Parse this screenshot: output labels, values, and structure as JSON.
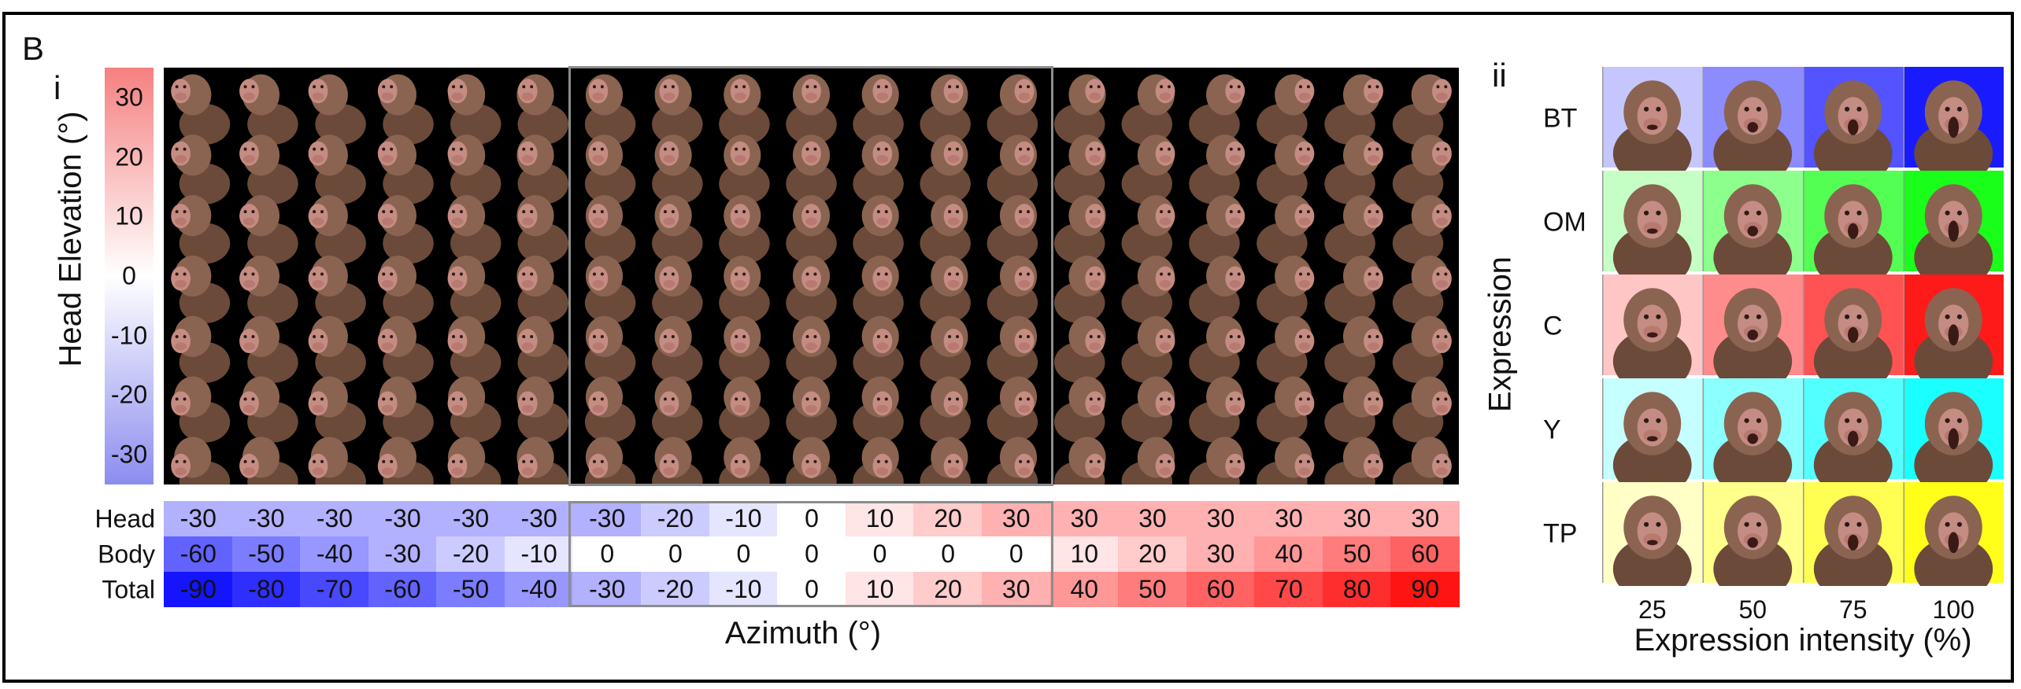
{
  "panel_letter": "B",
  "left": {
    "label": "i",
    "ylabel": "Head Elevation (°)",
    "ticks": [
      "30",
      "20",
      "10",
      "0",
      "-10",
      "-20",
      "-30"
    ],
    "row_labels": [
      "Head",
      "Body",
      "Total"
    ],
    "head": [
      "-30",
      "-30",
      "-30",
      "-30",
      "-30",
      "-30",
      "-30",
      "-20",
      "-10",
      "0",
      "10",
      "20",
      "30",
      "30",
      "30",
      "30",
      "30",
      "30",
      "30"
    ],
    "body": [
      "-60",
      "-50",
      "-40",
      "-30",
      "-20",
      "-10",
      "0",
      "0",
      "0",
      "0",
      "0",
      "0",
      "0",
      "10",
      "20",
      "30",
      "40",
      "50",
      "60"
    ],
    "total": [
      "-90",
      "-80",
      "-70",
      "-60",
      "-50",
      "-40",
      "-30",
      "-20",
      "-10",
      "0",
      "10",
      "20",
      "30",
      "40",
      "50",
      "60",
      "70",
      "80",
      "90"
    ],
    "xlabel": "Azimuth (°)"
  },
  "right": {
    "label": "ii",
    "ylabel": "Expression",
    "rows": [
      {
        "label": "BT",
        "color": "#1a1aff"
      },
      {
        "label": "OM",
        "color": "#1aff1a"
      },
      {
        "label": "C",
        "color": "#ff1a1a"
      },
      {
        "label": "Y",
        "color": "#1affff"
      },
      {
        "label": "TP",
        "color": "#ffff1a"
      }
    ],
    "ticks": [
      "25",
      "50",
      "75",
      "100"
    ],
    "xlabel": "Expression intensity (%)"
  }
}
